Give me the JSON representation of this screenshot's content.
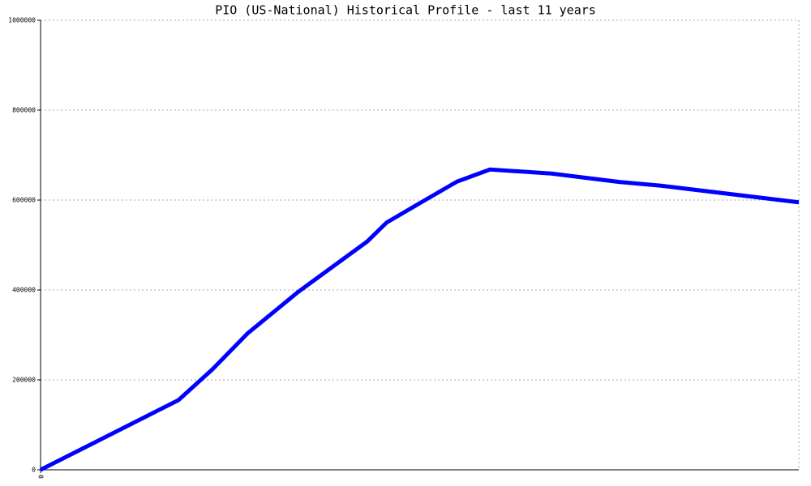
{
  "chart_data": {
    "type": "line",
    "title": "PIO (US-National) Historical Profile - last 11 years",
    "x": [
      0,
      2.0,
      2.49,
      3.0,
      3.74,
      4.74,
      5.02,
      5.5,
      6.04,
      6.52,
      7.41,
      8.41,
      9.0,
      11
    ],
    "series": [
      {
        "name": "PIO",
        "color": "#0000ff",
        "values": [
          0,
          155000,
          223000,
          303000,
          396000,
          508000,
          550000,
          593000,
          641000,
          668000,
          659000,
          640000,
          632000,
          595000
        ]
      }
    ],
    "xlim": [
      0,
      11
    ],
    "xticks": [
      0
    ],
    "ylim": [
      0,
      1000000
    ],
    "yticks": [
      0,
      200000,
      400000,
      600000,
      800000,
      1000000
    ],
    "grid": true
  }
}
